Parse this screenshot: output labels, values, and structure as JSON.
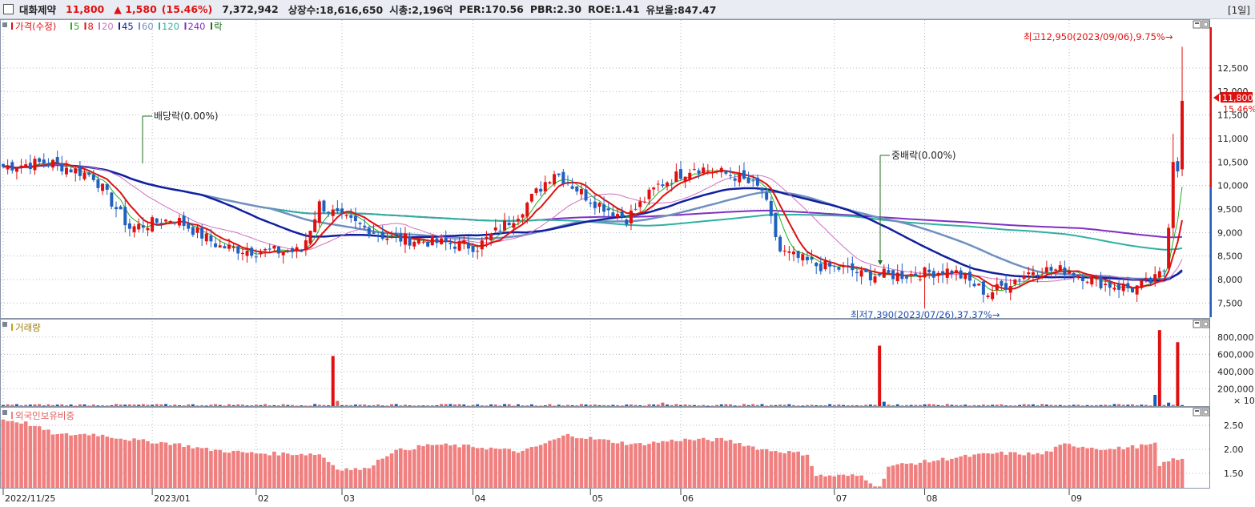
{
  "header": {
    "name": "대화제약",
    "price": "11,800",
    "change": "▲ 1,580",
    "change_pct": "(15.46%)",
    "volume": "7,372,942",
    "shares": "상장수:18,616,650",
    "mktcap": "시총:2,196억",
    "per": "PER:170.56",
    "pbr": "PBR:2.30",
    "roe": "ROE:1.41",
    "reserve": "유보율:847.47",
    "period": "[1일]"
  },
  "legend": {
    "price": "가격(수정)",
    "ma": [
      {
        "label": "5",
        "color": "#20b020"
      },
      {
        "label": "8",
        "color": "#e01010"
      },
      {
        "label": "20",
        "color": "#d070c0"
      },
      {
        "label": "45",
        "color": "#1020a0"
      },
      {
        "label": "60",
        "color": "#7090c0"
      },
      {
        "label": "120",
        "color": "#30b0a0"
      },
      {
        "label": "240",
        "color": "#8030c0"
      }
    ],
    "rak": "락"
  },
  "annotations": {
    "dividend": "배당락(0.00%)",
    "bonus": "중배락(0.00%)",
    "high": "최고12,950(2023/09/06),9.75%→",
    "low": "최저7,390(2023/07/26),37.37%→"
  },
  "price_tag": {
    "value": "11,800",
    "pct": "15.46%"
  },
  "volume_panel": {
    "title": "거래량",
    "unit": "× 10"
  },
  "foreign_panel": {
    "title": "외국인보유비중"
  },
  "colors": {
    "up": "#e01010",
    "down": "#2060c0",
    "grid": "#b0b8c8",
    "volume_bar": "#1a5ab8"
  },
  "chart_data": [
    {
      "type": "candlestick",
      "title": "가격(수정)",
      "ylim": [
        7200,
        13400
      ],
      "yticks": [
        7500,
        8000,
        8500,
        9000,
        9500,
        10000,
        10500,
        11000,
        11500,
        12000,
        12500
      ],
      "ytick_labels": [
        "7,500",
        "8,000",
        "8,500",
        "9,000",
        "9,500",
        "10,000",
        "10,500",
        "11,000",
        "11,500",
        "12,000",
        "12,500"
      ],
      "xticks": [
        "2022/11/25",
        "2023/01",
        "02",
        "03",
        "04",
        "05",
        "06",
        "07",
        "08",
        "09"
      ],
      "anchors": [
        [
          0,
          10400
        ],
        [
          10,
          10500
        ],
        [
          20,
          10200
        ],
        [
          28,
          9100
        ],
        [
          38,
          9300
        ],
        [
          48,
          8700
        ],
        [
          56,
          8600
        ],
        [
          66,
          8600
        ],
        [
          70,
          9600
        ],
        [
          75,
          9300
        ],
        [
          85,
          8900
        ],
        [
          95,
          8800
        ],
        [
          105,
          8700
        ],
        [
          114,
          9400
        ],
        [
          122,
          10300
        ],
        [
          130,
          9700
        ],
        [
          138,
          9300
        ],
        [
          145,
          10000
        ],
        [
          153,
          10400
        ],
        [
          162,
          10200
        ],
        [
          168,
          9900
        ],
        [
          172,
          8600
        ],
        [
          180,
          8300
        ],
        [
          188,
          8200
        ],
        [
          190,
          8100
        ],
        [
          200,
          8100
        ],
        [
          210,
          8200
        ],
        [
          218,
          7700
        ],
        [
          228,
          8200
        ],
        [
          236,
          8200
        ],
        [
          244,
          7900
        ],
        [
          250,
          7800
        ],
        [
          255,
          8000
        ],
        [
          258,
          8300
        ],
        [
          261,
          11800
        ]
      ],
      "high": 12950,
      "low": 7390,
      "last": 11800,
      "last_change_pct": 15.46
    },
    {
      "type": "bar",
      "title": "거래량",
      "ylim": [
        0,
        900000
      ],
      "yticks": [
        200000,
        400000,
        600000,
        800000
      ],
      "ytick_labels": [
        "200,000",
        "400,000",
        "600,000",
        "800,000"
      ],
      "spikes": [
        {
          "index": 73,
          "value": 580000
        },
        {
          "index": 74,
          "value": 60000
        },
        {
          "index": 146,
          "value": 40000
        },
        {
          "index": 194,
          "value": 700000
        },
        {
          "index": 195,
          "value": 50000
        },
        {
          "index": 255,
          "value": 130000
        },
        {
          "index": 256,
          "value": 880000
        },
        {
          "index": 258,
          "value": 40000
        },
        {
          "index": 260,
          "value": 740000
        }
      ],
      "base_volume": 12000
    },
    {
      "type": "bar",
      "title": "외국인보유비중",
      "ylim": [
        1.2,
        2.75
      ],
      "yticks": [
        1.5,
        2.0,
        2.5
      ],
      "ytick_labels": [
        "1.50",
        "2.00",
        "2.50"
      ],
      "anchors": [
        [
          0,
          2.62
        ],
        [
          5,
          2.55
        ],
        [
          12,
          2.3
        ],
        [
          20,
          2.32
        ],
        [
          30,
          2.18
        ],
        [
          38,
          2.12
        ],
        [
          45,
          2.0
        ],
        [
          55,
          1.92
        ],
        [
          70,
          1.9
        ],
        [
          74,
          1.6
        ],
        [
          80,
          1.58
        ],
        [
          86,
          1.95
        ],
        [
          95,
          2.1
        ],
        [
          105,
          2.05
        ],
        [
          115,
          1.95
        ],
        [
          125,
          2.3
        ],
        [
          132,
          2.2
        ],
        [
          140,
          2.1
        ],
        [
          150,
          2.2
        ],
        [
          160,
          2.2
        ],
        [
          168,
          2.0
        ],
        [
          178,
          1.9
        ],
        [
          180,
          1.45
        ],
        [
          190,
          1.45
        ],
        [
          194,
          1.2
        ],
        [
          196,
          1.65
        ],
        [
          205,
          1.75
        ],
        [
          210,
          1.82
        ],
        [
          220,
          1.92
        ],
        [
          230,
          1.9
        ],
        [
          235,
          2.1
        ],
        [
          245,
          2.0
        ],
        [
          255,
          2.1
        ],
        [
          256,
          1.65
        ],
        [
          258,
          1.78
        ]
      ]
    }
  ]
}
